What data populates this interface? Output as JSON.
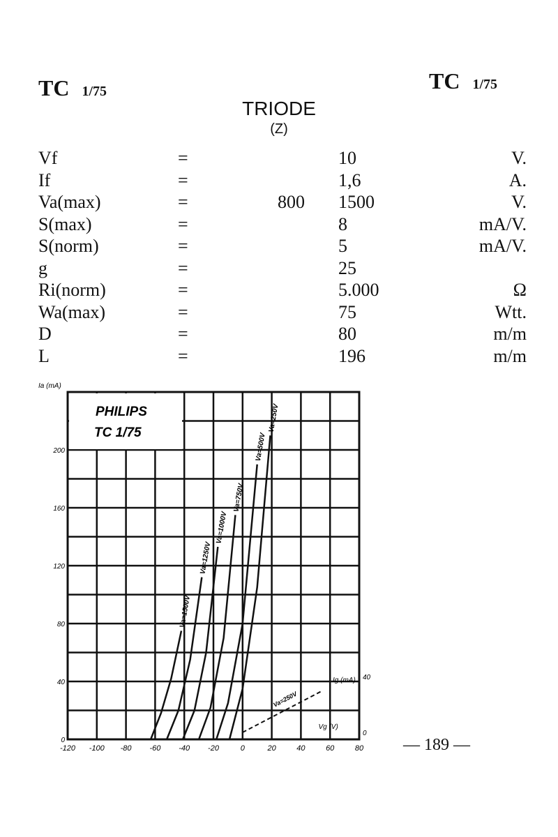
{
  "header": {
    "left": {
      "code": "TC",
      "num": "1/75"
    },
    "right": {
      "code": "TC",
      "num": "1/75"
    }
  },
  "title": "TRIODE",
  "subtitle": "(Z)",
  "specs": [
    {
      "label": "Vf",
      "eq": "=",
      "value": "10",
      "value2": "",
      "unit": "V."
    },
    {
      "label": "If",
      "eq": "=",
      "value": "1,6",
      "value2": "",
      "unit": "A."
    },
    {
      "label": "Va(max)",
      "eq": "=",
      "value": "1500",
      "value2": "800",
      "unit": "V."
    },
    {
      "label": "S(max)",
      "eq": "=",
      "value": "8",
      "value2": "",
      "unit": "mA/V."
    },
    {
      "label": "S(norm)",
      "eq": "=",
      "value": "5",
      "value2": "",
      "unit": "mA/V."
    },
    {
      "label": "g",
      "eq": "=",
      "value": "25",
      "value2": "",
      "unit": ""
    },
    {
      "label": "Ri(norm)",
      "eq": "=",
      "value": "5.000",
      "value2": "",
      "unit": "Ω"
    },
    {
      "label": "Wa(max)",
      "eq": "=",
      "value": "75",
      "value2": "",
      "unit": "Wtt."
    },
    {
      "label": "D",
      "eq": "=",
      "value": "80",
      "value2": "",
      "unit": "m/m"
    },
    {
      "label": "L",
      "eq": "=",
      "value": "196",
      "value2": "",
      "unit": "m/m"
    }
  ],
  "chart_data": {
    "type": "line",
    "brand_box": {
      "line1": "PHILIPS",
      "line2": "TC 1/75"
    },
    "ylabel": "Ia (mA)",
    "xlabel": "Vg (V)",
    "y2label": "Ig (mA)",
    "xlim": [
      -120,
      80
    ],
    "ylim": [
      0,
      240
    ],
    "y2lim": [
      0,
      40
    ],
    "grid": true,
    "xticks": [
      -120,
      -100,
      -80,
      -60,
      -40,
      -20,
      0,
      20,
      40,
      60,
      80
    ],
    "yticks": [
      0,
      40,
      80,
      120,
      160,
      200
    ],
    "y2ticks": [
      0,
      40
    ],
    "series": [
      {
        "name": "Va=1500V",
        "points": [
          [
            -63,
            0
          ],
          [
            -56,
            18
          ],
          [
            -49,
            42
          ],
          [
            -42,
            75
          ]
        ]
      },
      {
        "name": "Va=1250V",
        "points": [
          [
            -52,
            0
          ],
          [
            -44,
            20
          ],
          [
            -36,
            55
          ],
          [
            -28,
            112
          ]
        ]
      },
      {
        "name": "Va=1000V",
        "points": [
          [
            -41,
            0
          ],
          [
            -33,
            20
          ],
          [
            -25,
            60
          ],
          [
            -17,
            133
          ]
        ]
      },
      {
        "name": "Va=750V",
        "points": [
          [
            -30,
            0
          ],
          [
            -22,
            22
          ],
          [
            -13,
            70
          ],
          [
            -5,
            155
          ]
        ]
      },
      {
        "name": "Va=500V",
        "points": [
          [
            -18,
            0
          ],
          [
            -10,
            25
          ],
          [
            0,
            80
          ],
          [
            10,
            190
          ]
        ]
      },
      {
        "name": "Va=250V",
        "points": [
          [
            -9,
            0
          ],
          [
            0,
            35
          ],
          [
            10,
            105
          ],
          [
            19,
            210
          ]
        ]
      }
    ],
    "grid_current": {
      "name": "Va=250V",
      "axis": "y2",
      "points": [
        [
          0,
          0
        ],
        [
          55,
          30
        ]
      ]
    }
  },
  "page_number": "— 189 —"
}
